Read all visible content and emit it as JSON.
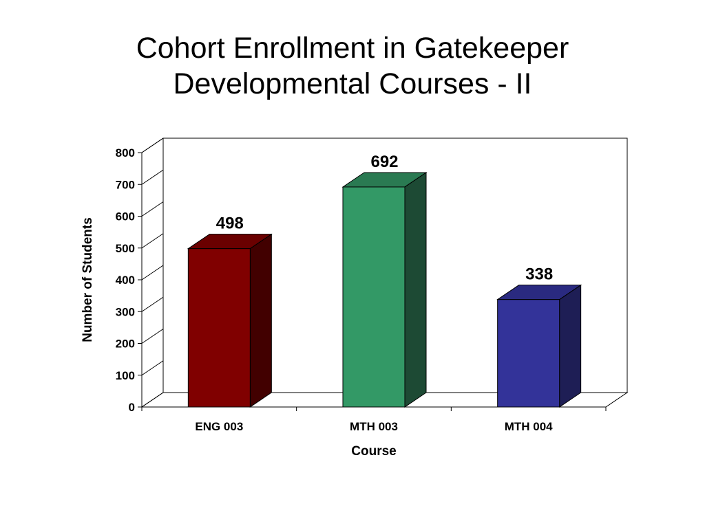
{
  "slide": {
    "title_line1": "Cohort Enrollment in Gatekeeper",
    "title_line2": "Developmental Courses - II"
  },
  "chart_data": {
    "type": "bar",
    "style": "3d",
    "categories": [
      "ENG 003",
      "MTH 003",
      "MTH 004"
    ],
    "values": [
      498,
      692,
      338
    ],
    "data_labels": [
      "498",
      "692",
      "338"
    ],
    "bar_colors": [
      {
        "front": "#800000",
        "top": "#6a0000",
        "side": "#420000"
      },
      {
        "front": "#339966",
        "top": "#2a7a52",
        "side": "#1d4a34"
      },
      {
        "front": "#333399",
        "top": "#2a2a80",
        "side": "#1e1e55"
      }
    ],
    "xlabel": "Course",
    "ylabel": "Number of Students",
    "ylim": [
      0,
      800
    ],
    "yticks": [
      0,
      100,
      200,
      300,
      400,
      500,
      600,
      700,
      800
    ],
    "grid": false,
    "legend": "none"
  }
}
